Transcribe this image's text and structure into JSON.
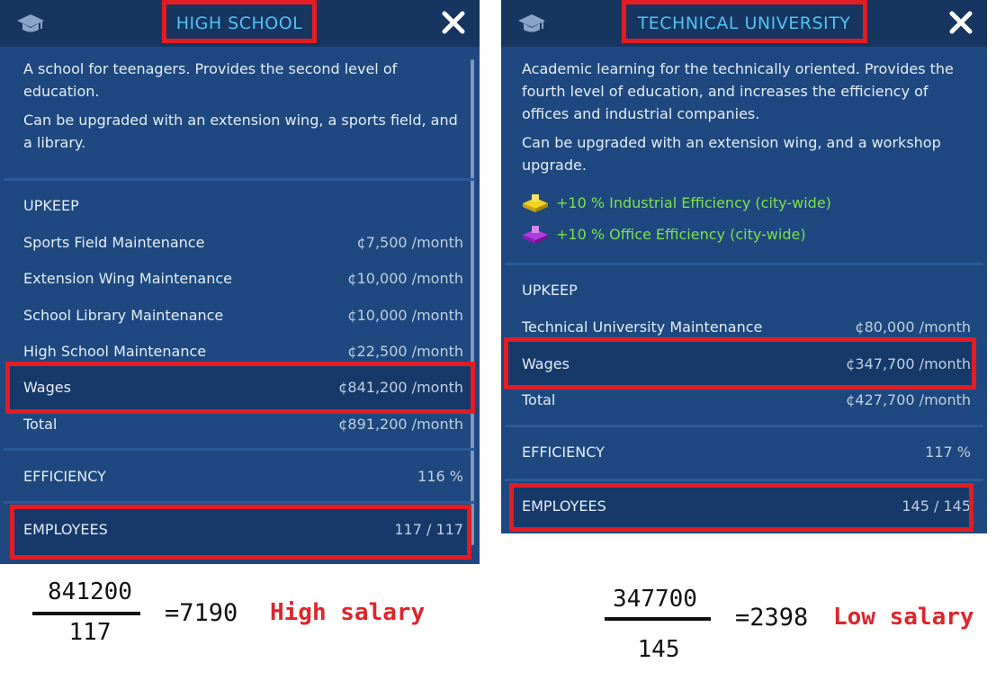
{
  "left_panel": {
    "title": "HIGH SCHOOL",
    "description": [
      "A school for teenagers. Provides the second level of education.",
      "Can be upgraded with an extension wing, a sports field, and a library."
    ],
    "upkeep_title": "UPKEEP",
    "upkeep_rows": [
      {
        "label": "Sports Field Maintenance",
        "value": "¢7,500 /month"
      },
      {
        "label": "Extension Wing Maintenance",
        "value": "¢10,000 /month"
      },
      {
        "label": "School Library Maintenance",
        "value": "¢10,000 /month"
      },
      {
        "label": "High School Maintenance",
        "value": "¢22,500 /month"
      },
      {
        "label": "Wages",
        "value": "¢841,200 /month"
      },
      {
        "label": "Total",
        "value": "¢891,200 /month"
      }
    ],
    "efficiency": {
      "label": "EFFICIENCY",
      "value": "116 %"
    },
    "employees": {
      "label": "EMPLOYEES",
      "value": "117 / 117"
    }
  },
  "right_panel": {
    "title": "TECHNICAL UNIVERSITY",
    "description": [
      "Academic learning for the technically oriented. Provides the fourth level of education, and increases the efficiency of offices and industrial companies.",
      "Can be upgraded with an extension wing, and a workshop upgrade."
    ],
    "effects": [
      {
        "icon": "industrial-efficiency-icon",
        "color": "#f2d21b",
        "text": "+10 % Industrial Efficiency (city-wide)"
      },
      {
        "icon": "office-efficiency-icon",
        "color": "#b23be0",
        "text": "+10 % Office Efficiency (city-wide)"
      }
    ],
    "upkeep_title": "UPKEEP",
    "upkeep_rows": [
      {
        "label": "Technical University Maintenance",
        "value": "¢80,000 /month"
      },
      {
        "label": "Wages",
        "value": "¢347,700 /month"
      },
      {
        "label": "Total",
        "value": "¢427,700 /month"
      }
    ],
    "efficiency": {
      "label": "EFFICIENCY",
      "value": "117 %"
    },
    "employees": {
      "label": "EMPLOYEES",
      "value": "145 / 145"
    }
  },
  "annotations": {
    "left": {
      "numerator": "841200",
      "denominator": "117",
      "result": "=7190",
      "note": "High salary"
    },
    "right": {
      "numerator": "347700",
      "denominator": "145",
      "result": "=2398",
      "note": "Low salary"
    }
  },
  "colors": {
    "panel": "#1e487f",
    "header": "#163560",
    "title": "#4fc3f7",
    "highlight": "#e31b23",
    "effect_text": "#7ee04a"
  }
}
